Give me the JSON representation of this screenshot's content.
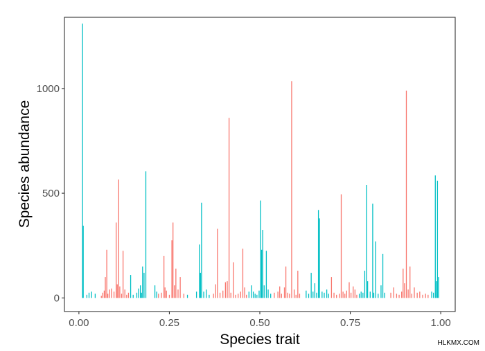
{
  "chart_data": {
    "type": "bar",
    "xlabel": "Species trait",
    "ylabel": "Species abundance",
    "xlim": [
      -0.04,
      1.04
    ],
    "ylim": [
      -65,
      1340
    ],
    "x_ticks": [
      {
        "value": 0,
        "label": "0.00"
      },
      {
        "value": 0.25,
        "label": "0.25"
      },
      {
        "value": 0.5,
        "label": "0.50"
      },
      {
        "value": 0.75,
        "label": "0.75"
      },
      {
        "value": 1,
        "label": "1.00"
      }
    ],
    "y_ticks": [
      {
        "value": 0,
        "label": "0"
      },
      {
        "value": 500,
        "label": "500"
      },
      {
        "value": 1000,
        "label": "1000"
      }
    ],
    "grid": false,
    "legend": "none",
    "series_colors": [
      "#F8766D",
      "#00BFC4"
    ],
    "points": [
      [
        0.01,
        1310,
        1
      ],
      [
        0.012,
        345,
        1
      ],
      [
        0.022,
        15,
        1
      ],
      [
        0.028,
        25,
        1
      ],
      [
        0.035,
        30,
        1
      ],
      [
        0.045,
        20,
        1
      ],
      [
        0.062,
        10,
        0
      ],
      [
        0.066,
        25,
        0
      ],
      [
        0.07,
        35,
        0
      ],
      [
        0.073,
        100,
        0
      ],
      [
        0.077,
        230,
        0
      ],
      [
        0.08,
        20,
        0
      ],
      [
        0.085,
        40,
        0
      ],
      [
        0.09,
        45,
        0
      ],
      [
        0.097,
        30,
        0
      ],
      [
        0.103,
        360,
        0
      ],
      [
        0.106,
        65,
        0
      ],
      [
        0.11,
        565,
        0
      ],
      [
        0.113,
        55,
        0
      ],
      [
        0.118,
        20,
        0
      ],
      [
        0.122,
        225,
        0
      ],
      [
        0.127,
        40,
        0
      ],
      [
        0.132,
        15,
        0
      ],
      [
        0.137,
        25,
        0
      ],
      [
        0.143,
        110,
        1
      ],
      [
        0.15,
        15,
        1
      ],
      [
        0.16,
        25,
        1
      ],
      [
        0.165,
        45,
        1
      ],
      [
        0.17,
        60,
        1
      ],
      [
        0.173,
        25,
        1
      ],
      [
        0.176,
        150,
        1
      ],
      [
        0.18,
        120,
        1
      ],
      [
        0.185,
        605,
        1
      ],
      [
        0.21,
        60,
        1
      ],
      [
        0.215,
        30,
        1
      ],
      [
        0.22,
        20,
        0
      ],
      [
        0.228,
        25,
        0
      ],
      [
        0.235,
        200,
        0
      ],
      [
        0.238,
        50,
        0
      ],
      [
        0.242,
        35,
        0
      ],
      [
        0.25,
        15,
        0
      ],
      [
        0.257,
        275,
        0
      ],
      [
        0.26,
        360,
        0
      ],
      [
        0.264,
        60,
        0
      ],
      [
        0.268,
        140,
        0
      ],
      [
        0.274,
        40,
        0
      ],
      [
        0.28,
        100,
        0
      ],
      [
        0.29,
        20,
        0
      ],
      [
        0.3,
        15,
        1
      ],
      [
        0.325,
        30,
        1
      ],
      [
        0.333,
        255,
        1
      ],
      [
        0.336,
        120,
        1
      ],
      [
        0.339,
        455,
        1
      ],
      [
        0.345,
        30,
        1
      ],
      [
        0.352,
        40,
        1
      ],
      [
        0.36,
        15,
        1
      ],
      [
        0.372,
        20,
        0
      ],
      [
        0.378,
        65,
        0
      ],
      [
        0.383,
        330,
        0
      ],
      [
        0.39,
        25,
        0
      ],
      [
        0.398,
        35,
        0
      ],
      [
        0.405,
        75,
        0
      ],
      [
        0.41,
        80,
        0
      ],
      [
        0.415,
        860,
        0
      ],
      [
        0.42,
        25,
        0
      ],
      [
        0.427,
        170,
        0
      ],
      [
        0.433,
        15,
        0
      ],
      [
        0.44,
        20,
        0
      ],
      [
        0.447,
        30,
        0
      ],
      [
        0.453,
        235,
        0
      ],
      [
        0.458,
        50,
        0
      ],
      [
        0.463,
        15,
        0
      ],
      [
        0.47,
        30,
        1
      ],
      [
        0.477,
        60,
        1
      ],
      [
        0.482,
        30,
        1
      ],
      [
        0.487,
        20,
        1
      ],
      [
        0.492,
        15,
        1
      ],
      [
        0.498,
        35,
        1
      ],
      [
        0.502,
        465,
        1
      ],
      [
        0.505,
        230,
        1
      ],
      [
        0.508,
        325,
        1
      ],
      [
        0.512,
        60,
        1
      ],
      [
        0.518,
        225,
        1
      ],
      [
        0.523,
        40,
        1
      ],
      [
        0.53,
        20,
        1
      ],
      [
        0.54,
        25,
        0
      ],
      [
        0.55,
        30,
        0
      ],
      [
        0.555,
        55,
        0
      ],
      [
        0.56,
        20,
        0
      ],
      [
        0.568,
        50,
        0
      ],
      [
        0.572,
        150,
        0
      ],
      [
        0.577,
        25,
        0
      ],
      [
        0.582,
        20,
        0
      ],
      [
        0.588,
        1035,
        0
      ],
      [
        0.595,
        40,
        0
      ],
      [
        0.6,
        15,
        0
      ],
      [
        0.605,
        130,
        0
      ],
      [
        0.61,
        20,
        0
      ],
      [
        0.628,
        35,
        1
      ],
      [
        0.635,
        20,
        1
      ],
      [
        0.642,
        120,
        1
      ],
      [
        0.647,
        30,
        1
      ],
      [
        0.652,
        70,
        1
      ],
      [
        0.657,
        25,
        1
      ],
      [
        0.662,
        420,
        1
      ],
      [
        0.665,
        380,
        1
      ],
      [
        0.672,
        30,
        1
      ],
      [
        0.678,
        25,
        1
      ],
      [
        0.685,
        40,
        1
      ],
      [
        0.69,
        20,
        1
      ],
      [
        0.698,
        100,
        0
      ],
      [
        0.705,
        25,
        0
      ],
      [
        0.712,
        15,
        0
      ],
      [
        0.72,
        20,
        0
      ],
      [
        0.725,
        495,
        0
      ],
      [
        0.73,
        30,
        0
      ],
      [
        0.735,
        20,
        0
      ],
      [
        0.74,
        35,
        0
      ],
      [
        0.747,
        75,
        0
      ],
      [
        0.752,
        25,
        0
      ],
      [
        0.758,
        55,
        0
      ],
      [
        0.763,
        40,
        0
      ],
      [
        0.768,
        15,
        0
      ],
      [
        0.775,
        20,
        1
      ],
      [
        0.78,
        30,
        1
      ],
      [
        0.785,
        25,
        1
      ],
      [
        0.79,
        130,
        1
      ],
      [
        0.795,
        540,
        1
      ],
      [
        0.798,
        80,
        1
      ],
      [
        0.805,
        30,
        1
      ],
      [
        0.812,
        450,
        1
      ],
      [
        0.815,
        25,
        1
      ],
      [
        0.82,
        270,
        1
      ],
      [
        0.827,
        20,
        1
      ],
      [
        0.835,
        60,
        1
      ],
      [
        0.84,
        210,
        1
      ],
      [
        0.845,
        25,
        1
      ],
      [
        0.862,
        25,
        0
      ],
      [
        0.87,
        50,
        0
      ],
      [
        0.878,
        20,
        0
      ],
      [
        0.885,
        15,
        0
      ],
      [
        0.892,
        30,
        0
      ],
      [
        0.896,
        140,
        0
      ],
      [
        0.9,
        70,
        0
      ],
      [
        0.905,
        990,
        0
      ],
      [
        0.91,
        40,
        0
      ],
      [
        0.915,
        150,
        0
      ],
      [
        0.92,
        20,
        0
      ],
      [
        0.927,
        50,
        0
      ],
      [
        0.935,
        25,
        0
      ],
      [
        0.942,
        30,
        0
      ],
      [
        0.95,
        15,
        0
      ],
      [
        0.958,
        20,
        0
      ],
      [
        0.965,
        15,
        0
      ],
      [
        0.975,
        30,
        1
      ],
      [
        0.98,
        25,
        1
      ],
      [
        0.985,
        585,
        1
      ],
      [
        0.988,
        80,
        1
      ],
      [
        0.991,
        560,
        1
      ],
      [
        0.994,
        100,
        1
      ]
    ]
  },
  "watermark": "HLKMX.COM"
}
